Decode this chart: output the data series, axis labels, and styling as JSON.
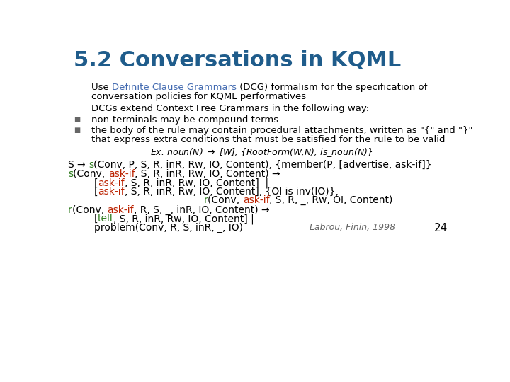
{
  "title": "5.2 Conversations in KQML",
  "title_color": "#1F5C8B",
  "title_fontsize": 22,
  "bg_color": "#FFFFFF",
  "body_fontsize": 9.5,
  "code_fontsize": 10,
  "slide_number": "24",
  "citation": "Labrou, Finin, 1998",
  "black": "#000000",
  "blue": "#4169B0",
  "green": "#2E7B1E",
  "red": "#BB2200",
  "gray": "#666666"
}
